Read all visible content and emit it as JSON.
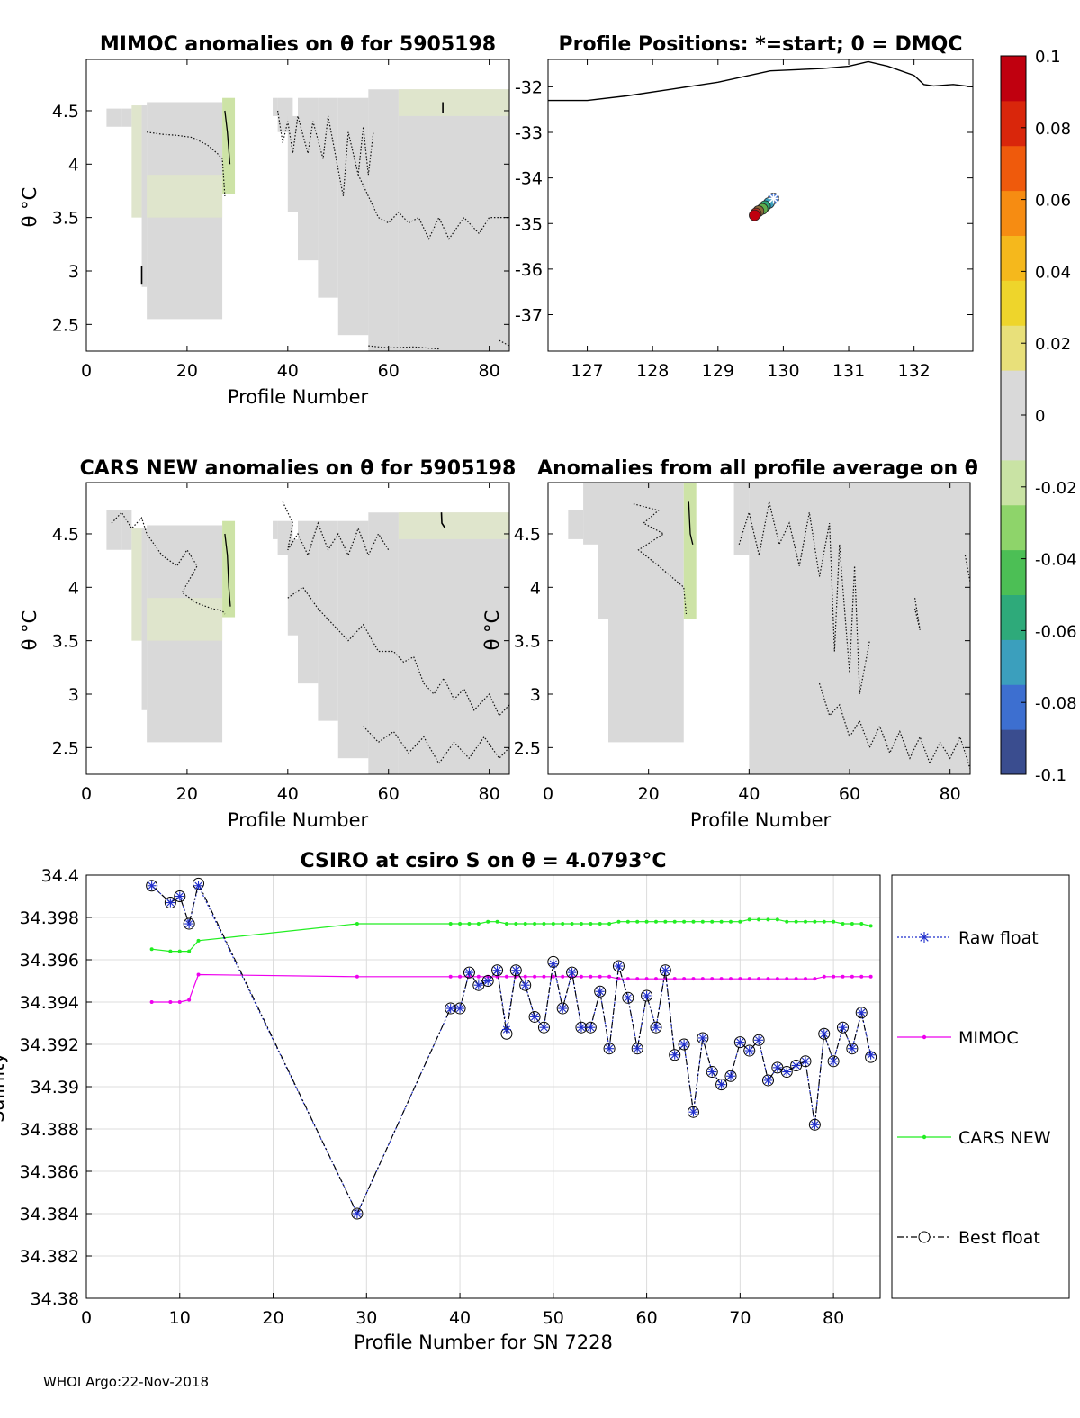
{
  "footer": "WHOI Argo:22-Nov-2018",
  "chart_data": [
    {
      "id": "mimoc",
      "type": "heatmap",
      "title": "MIMOC anomalies on θ  for 5905198",
      "xlabel": "Profile Number",
      "ylabel": "θ °C",
      "xlim": [
        0,
        84
      ],
      "ylim": [
        2.25,
        4.98
      ],
      "xticks": [
        "0",
        "20",
        "40",
        "60",
        "80"
      ],
      "yticks": [
        "2.5",
        "3",
        "3.5",
        "4",
        "4.5"
      ],
      "mask": [
        [
          4,
          4.52
        ],
        [
          7,
          4.52
        ],
        [
          10,
          4.3
        ],
        [
          11,
          4.05
        ],
        [
          12,
          3.7
        ],
        [
          27,
          3.7
        ],
        [
          29,
          4.6
        ],
        [
          38,
          4.6
        ],
        [
          42,
          4.3
        ],
        [
          48,
          3.8
        ],
        [
          54,
          3.2
        ],
        [
          62,
          2.5
        ],
        [
          84,
          2.3
        ]
      ],
      "dominant_value": 0.0
    },
    {
      "id": "positions",
      "type": "scatter",
      "title": "Profile Positions: *=start; 0 = DMQC",
      "xlim": [
        126.4,
        132.9
      ],
      "ylim": [
        -37.8,
        -31.4
      ],
      "xticks": [
        "127",
        "128",
        "129",
        "130",
        "131",
        "132"
      ],
      "yticks": [
        "-32",
        "-33",
        "-34",
        "-35",
        "-36",
        "-37"
      ],
      "coastline": [
        [
          126.4,
          -32.3
        ],
        [
          127.0,
          -32.3
        ],
        [
          127.6,
          -32.2
        ],
        [
          128.3,
          -32.05
        ],
        [
          129.0,
          -31.9
        ],
        [
          129.8,
          -31.65
        ],
        [
          130.6,
          -31.6
        ],
        [
          131.0,
          -31.55
        ],
        [
          131.3,
          -31.45
        ],
        [
          131.6,
          -31.55
        ],
        [
          132.0,
          -31.75
        ],
        [
          132.15,
          -31.95
        ],
        [
          132.3,
          -31.98
        ],
        [
          132.6,
          -31.95
        ],
        [
          132.9,
          -32.0
        ]
      ],
      "track": [
        [
          129.85,
          -34.45
        ],
        [
          129.78,
          -34.55
        ],
        [
          129.72,
          -34.62
        ],
        [
          129.68,
          -34.68
        ],
        [
          129.62,
          -34.73
        ],
        [
          129.58,
          -34.78
        ],
        [
          129.56,
          -34.82
        ]
      ],
      "start_point": [
        129.85,
        -34.45
      ]
    },
    {
      "id": "cars",
      "type": "heatmap",
      "title": "CARS NEW anomalies on θ for 5905198",
      "xlabel": "Profile Number",
      "ylabel": "θ °C",
      "xlim": [
        0,
        84
      ],
      "ylim": [
        2.25,
        4.98
      ],
      "xticks": [
        "0",
        "20",
        "40",
        "60",
        "80"
      ],
      "yticks": [
        "2.5",
        "3",
        "3.5",
        "4",
        "4.5"
      ],
      "dominant_value": 0.0
    },
    {
      "id": "allavg",
      "type": "heatmap",
      "title": "Anomalies from all profile average on θ",
      "xlabel": "Profile Number",
      "ylabel": "θ °C",
      "xlim": [
        0,
        84
      ],
      "ylim": [
        2.25,
        4.98
      ],
      "xticks": [
        "0",
        "20",
        "40",
        "60",
        "80"
      ],
      "yticks": [
        "2.5",
        "3",
        "3.5",
        "4",
        "4.5"
      ],
      "dominant_value": 0.0
    },
    {
      "id": "colorbar",
      "type": "heatmap",
      "range": [
        -0.1,
        0.1
      ],
      "ticks": [
        "0.1",
        "0.08",
        "0.06",
        "0.04",
        "0.02",
        "0",
        "-0.02",
        "-0.04",
        "-0.06",
        "-0.08",
        "-0.1"
      ],
      "colors": [
        "#3a4d8f",
        "#3d6fd0",
        "#3b9fbd",
        "#2eaa7a",
        "#4cbf55",
        "#8ed46a",
        "#c9e3a4",
        "#d9d9d9",
        "#d9d9d9",
        "#e8e07a",
        "#eed52b",
        "#f5b81c",
        "#f68c12",
        "#ef5a0c",
        "#d9260b",
        "#c0000f"
      ]
    },
    {
      "id": "salinity",
      "type": "line",
      "title": "CSIRO at csiro S on θ = 4.0793°C",
      "xlabel": "Profile Number for SN 7228",
      "ylabel": "Salinity",
      "xlim": [
        0,
        85
      ],
      "ylim": [
        34.38,
        34.4
      ],
      "xticks": [
        "0",
        "10",
        "20",
        "30",
        "40",
        "50",
        "60",
        "70",
        "80"
      ],
      "yticks": [
        "34.38",
        "34.382",
        "34.384",
        "34.386",
        "34.388",
        "34.39",
        "34.392",
        "34.394",
        "34.396",
        "34.398",
        "34.4"
      ],
      "grid": true,
      "legend_position": "right",
      "x": [
        7,
        9,
        10,
        11,
        12,
        29,
        39,
        40,
        41,
        42,
        43,
        44,
        45,
        46,
        47,
        48,
        49,
        50,
        51,
        52,
        53,
        54,
        55,
        56,
        57,
        58,
        59,
        60,
        61,
        62,
        63,
        64,
        65,
        66,
        67,
        68,
        69,
        70,
        71,
        72,
        73,
        74,
        75,
        76,
        77,
        78,
        79,
        80,
        81,
        82,
        83,
        84
      ],
      "series": [
        {
          "name": "Raw float",
          "color": "#1f2ecc",
          "values": [
            34.3995,
            34.3987,
            34.399,
            34.3977,
            34.3995,
            34.384,
            34.3937,
            34.3937,
            34.3954,
            34.3948,
            34.395,
            34.3955,
            34.3927,
            34.3955,
            34.3948,
            34.3933,
            34.3928,
            34.3958,
            34.3937,
            34.3954,
            34.3928,
            34.3928,
            34.3945,
            34.3918,
            34.3957,
            34.3942,
            34.3918,
            34.3943,
            34.3928,
            34.3955,
            34.3915,
            34.392,
            34.3888,
            34.3923,
            34.3907,
            34.3901,
            34.3905,
            34.3921,
            34.3917,
            34.3922,
            34.3903,
            34.3909,
            34.3907,
            34.391,
            34.3912,
            34.3882,
            34.3925,
            34.3912,
            34.3928,
            34.3918,
            34.3935,
            34.3915
          ]
        },
        {
          "name": "MIMOC",
          "color": "#ee00ee",
          "values": [
            34.394,
            34.394,
            34.394,
            34.3941,
            34.3953,
            34.3952,
            34.3952,
            34.3952,
            34.3952,
            34.3952,
            34.3952,
            34.3952,
            34.3952,
            34.3952,
            34.3952,
            34.3952,
            34.3952,
            34.3952,
            34.3952,
            34.3952,
            34.3952,
            34.3952,
            34.3952,
            34.3952,
            34.3951,
            34.3951,
            34.3951,
            34.3951,
            34.3951,
            34.3951,
            34.3951,
            34.3951,
            34.3951,
            34.3951,
            34.3951,
            34.3951,
            34.3951,
            34.3951,
            34.3951,
            34.3951,
            34.3951,
            34.3951,
            34.3951,
            34.3951,
            34.3951,
            34.3951,
            34.3952,
            34.3952,
            34.3952,
            34.3952,
            34.3952,
            34.3952
          ]
        },
        {
          "name": "CARS NEW",
          "color": "#22ee22",
          "values": [
            34.3965,
            34.3964,
            34.3964,
            34.3964,
            34.3969,
            34.3977,
            34.3977,
            34.3977,
            34.3977,
            34.3977,
            34.3978,
            34.3978,
            34.3977,
            34.3977,
            34.3977,
            34.3977,
            34.3977,
            34.3977,
            34.3977,
            34.3977,
            34.3977,
            34.3977,
            34.3977,
            34.3977,
            34.3978,
            34.3978,
            34.3978,
            34.3978,
            34.3978,
            34.3978,
            34.3978,
            34.3978,
            34.3978,
            34.3978,
            34.3978,
            34.3978,
            34.3978,
            34.3978,
            34.3979,
            34.3979,
            34.3979,
            34.3979,
            34.3978,
            34.3978,
            34.3978,
            34.3978,
            34.3978,
            34.3978,
            34.3977,
            34.3977,
            34.3977,
            34.3976
          ]
        },
        {
          "name": "Best float",
          "color": "#000000",
          "values": [
            34.3995,
            34.3987,
            34.399,
            34.3977,
            34.3996,
            34.384,
            34.3937,
            34.3937,
            34.3954,
            34.3948,
            34.395,
            34.3955,
            34.3925,
            34.3955,
            34.3948,
            34.3933,
            34.3928,
            34.3959,
            34.3937,
            34.3954,
            34.3928,
            34.3928,
            34.3945,
            34.3918,
            34.3957,
            34.3942,
            34.3918,
            34.3943,
            34.3928,
            34.3955,
            34.3915,
            34.392,
            34.3888,
            34.3923,
            34.3907,
            34.3901,
            34.3905,
            34.3921,
            34.3917,
            34.3922,
            34.3903,
            34.3909,
            34.3907,
            34.391,
            34.3912,
            34.3882,
            34.3925,
            34.3912,
            34.3928,
            34.3918,
            34.3935,
            34.3914
          ]
        }
      ]
    }
  ]
}
